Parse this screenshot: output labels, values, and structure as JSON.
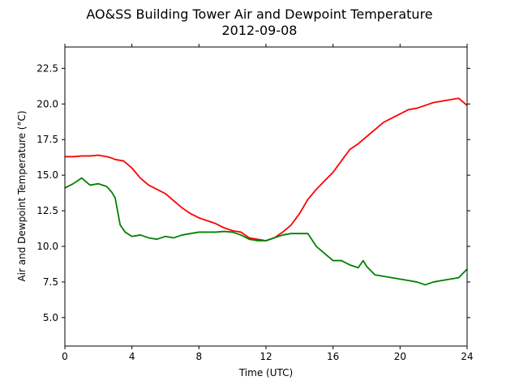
{
  "chart_data": {
    "type": "line",
    "title": "AO&SS Building Tower Air and Dewpoint Temperature",
    "subtitle": "2012-09-08",
    "xlabel": "Time (UTC)",
    "ylabel": "Air and Dewpoint Temperature (°C)",
    "xlim": [
      0,
      24
    ],
    "ylim": [
      3,
      24
    ],
    "xticks": [
      0,
      4,
      8,
      12,
      16,
      20,
      24
    ],
    "yticks": [
      5.0,
      7.5,
      10.0,
      12.5,
      15.0,
      17.5,
      20.0,
      22.5
    ],
    "ytick_labels": [
      "5.0",
      "7.5",
      "10.0",
      "12.5",
      "15.0",
      "17.5",
      "20.0",
      "22.5"
    ],
    "grid": false,
    "legend": "none",
    "series": [
      {
        "color": "#ff0000",
        "x": [
          0,
          0.5,
          1,
          1.5,
          2,
          2.5,
          2.8,
          3,
          3.5,
          4,
          4.5,
          5,
          5.5,
          6,
          6.5,
          7,
          7.5,
          8,
          8.5,
          9,
          9.5,
          10,
          10.5,
          11,
          11.5,
          12,
          12.5,
          13,
          13.5,
          14,
          14.5,
          15,
          15.5,
          16,
          16.5,
          17,
          17.5,
          18,
          18.5,
          19,
          19.5,
          20,
          20.5,
          21,
          21.5,
          22,
          22.5,
          23,
          23.5,
          24
        ],
        "values": [
          16.3,
          16.3,
          16.35,
          16.35,
          16.4,
          16.3,
          16.2,
          16.1,
          16.0,
          15.5,
          14.8,
          14.3,
          14.0,
          13.7,
          13.2,
          12.7,
          12.3,
          12.0,
          11.8,
          11.6,
          11.3,
          11.1,
          11.0,
          10.6,
          10.5,
          10.4,
          10.6,
          11.0,
          11.5,
          12.3,
          13.3,
          14.0,
          14.6,
          15.2,
          16.0,
          16.8,
          17.2,
          17.7,
          18.2,
          18.7,
          19.0,
          19.3,
          19.6,
          19.7,
          19.9,
          20.1,
          20.2,
          20.3,
          20.4,
          19.9
        ]
      },
      {
        "color": "#008000",
        "x": [
          0,
          0.5,
          1,
          1.5,
          2,
          2.5,
          2.8,
          3,
          3.3,
          3.6,
          4,
          4.5,
          5,
          5.5,
          6,
          6.5,
          7,
          7.5,
          8,
          8.5,
          9,
          9.5,
          10,
          10.5,
          11,
          11.5,
          12,
          12.5,
          13,
          13.5,
          14,
          14.5,
          15,
          15.5,
          16,
          16.5,
          17,
          17.5,
          17.8,
          18,
          18.5,
          19,
          19.5,
          20,
          20.5,
          21,
          21.5,
          22,
          22.5,
          23,
          23.5,
          24
        ],
        "values": [
          14.1,
          14.4,
          14.8,
          14.3,
          14.4,
          14.2,
          13.8,
          13.4,
          11.5,
          11.0,
          10.7,
          10.8,
          10.6,
          10.5,
          10.7,
          10.6,
          10.8,
          10.9,
          11.0,
          11.0,
          11.0,
          11.05,
          11.0,
          10.8,
          10.5,
          10.4,
          10.4,
          10.6,
          10.8,
          10.9,
          10.9,
          10.9,
          10.0,
          9.5,
          9.0,
          9.0,
          8.7,
          8.5,
          9.0,
          8.6,
          8.0,
          7.9,
          7.8,
          7.7,
          7.6,
          7.5,
          7.3,
          7.5,
          7.6,
          7.7,
          7.8,
          8.4
        ]
      }
    ]
  }
}
